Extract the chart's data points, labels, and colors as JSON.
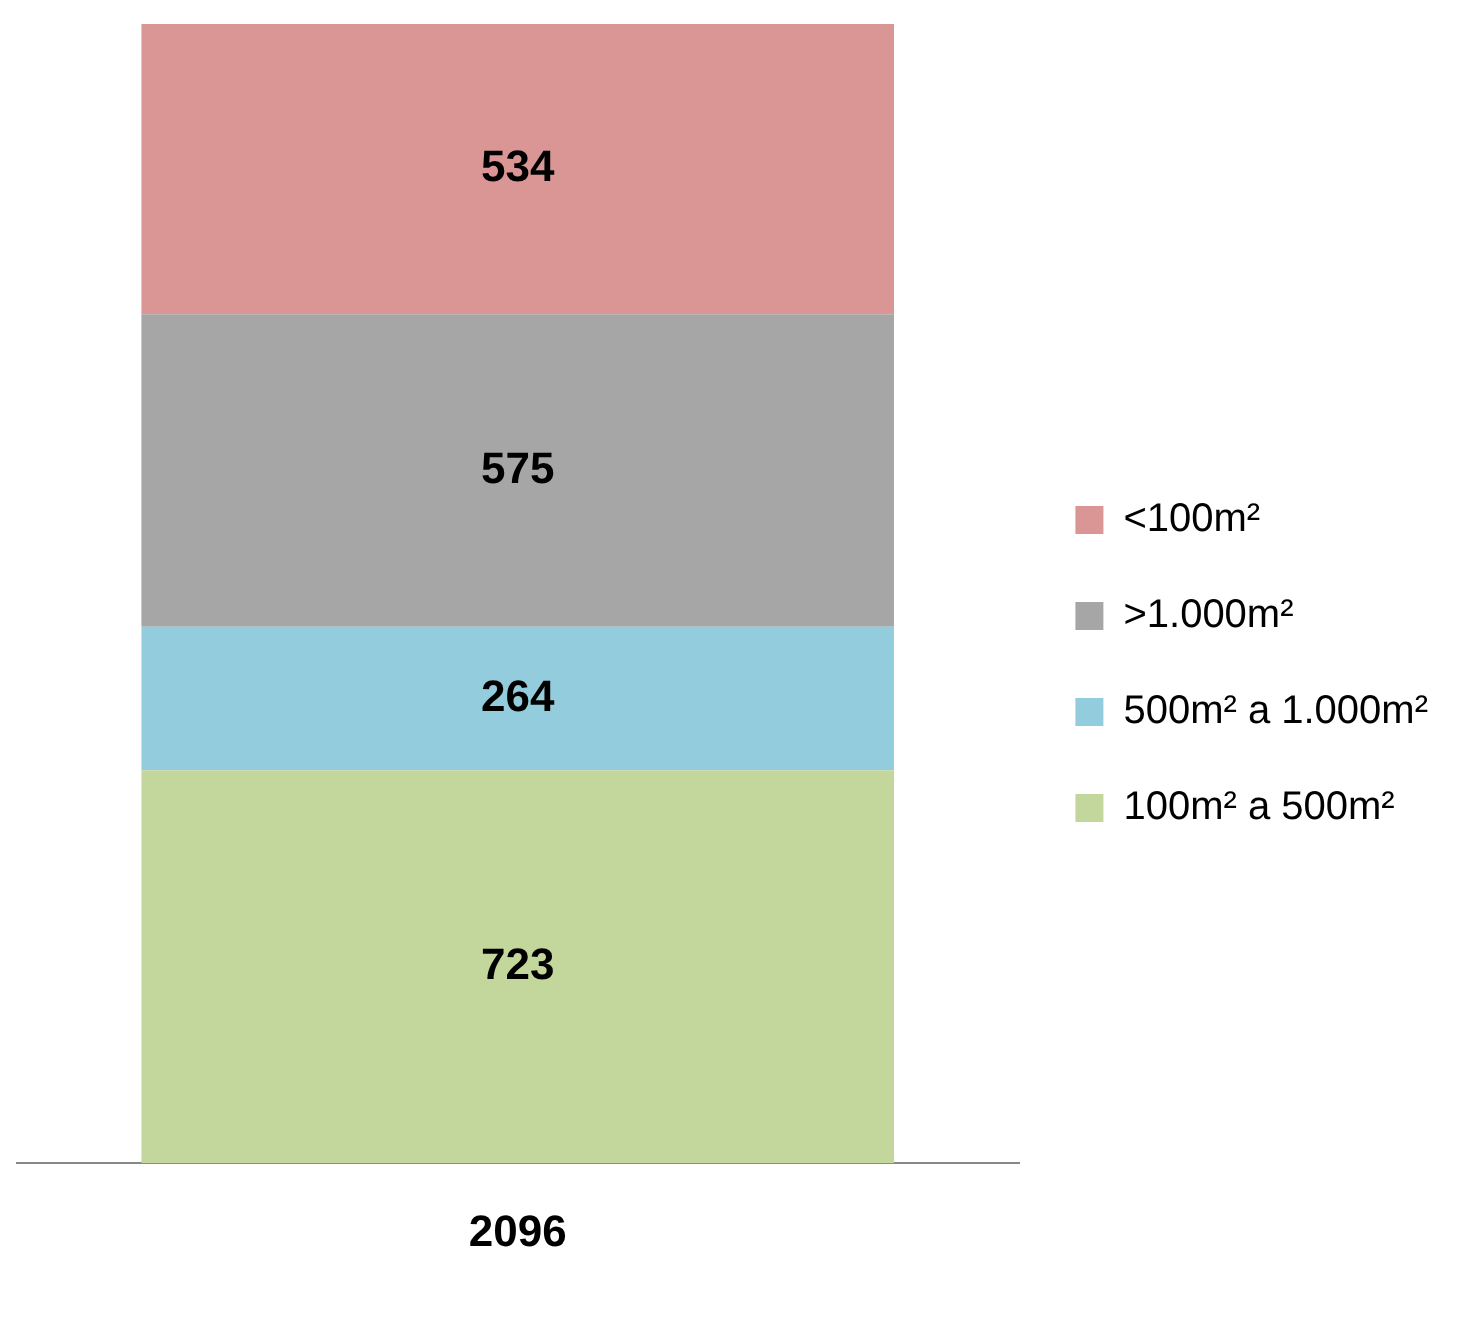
{
  "chart_data": {
    "type": "bar",
    "stacked": true,
    "categories": [
      null
    ],
    "totals": [
      "2096"
    ],
    "data_labels": true,
    "legend": "right",
    "grid": false,
    "series": [
      {
        "name": "100m² a 500m²",
        "color": "#c3d69b",
        "values": [
          723
        ]
      },
      {
        "name": "500m² a 1.000m²",
        "color": "#93cddd",
        "values": [
          264
        ]
      },
      {
        "name": ">1.000m²",
        "color": "#a6a6a6",
        "values": [
          575
        ]
      },
      {
        "name": "<100m²",
        "color": "#d99694",
        "values": [
          534
        ]
      }
    ]
  }
}
